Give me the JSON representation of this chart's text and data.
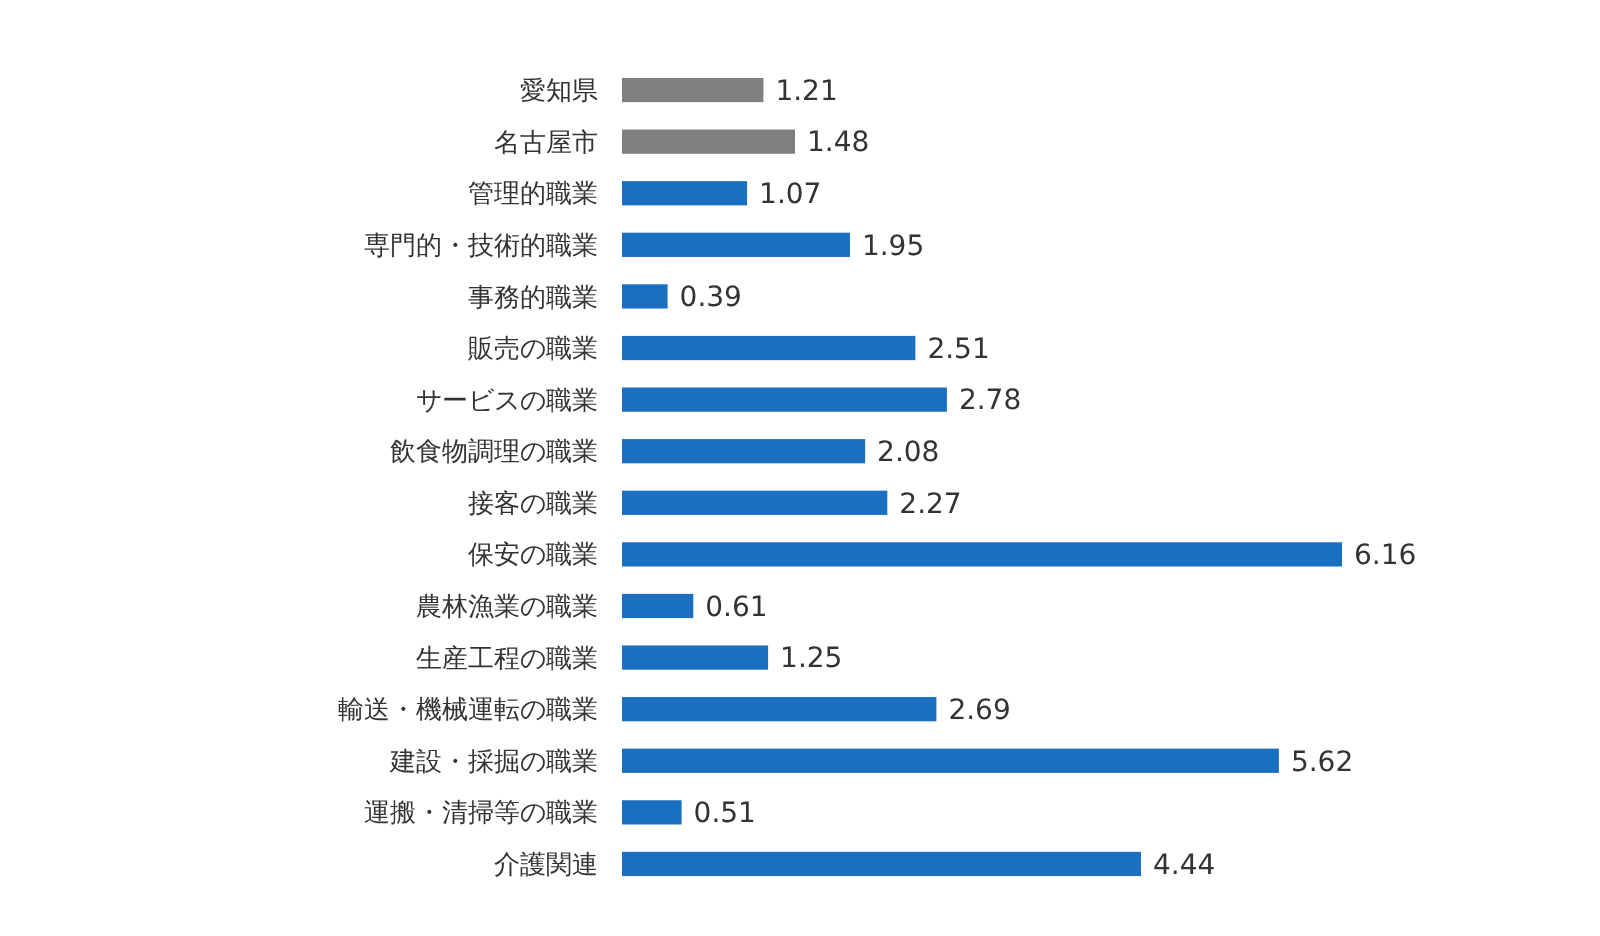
{
  "chart_data": {
    "type": "bar",
    "orientation": "horizontal",
    "categories": [
      "愛知県",
      "名古屋市",
      "管理的職業",
      "専門的・技術的職業",
      "事務的職業",
      "販売の職業",
      "サービスの職業",
      "飲食物調理の職業",
      "接客の職業",
      "保安の職業",
      "農林漁業の職業",
      "生産工程の職業",
      "輸送・機械運転の職業",
      "建設・採掘の職業",
      "運搬・清掃等の職業",
      "介護関連"
    ],
    "values": [
      1.21,
      1.48,
      1.07,
      1.95,
      0.39,
      2.51,
      2.78,
      2.08,
      2.27,
      6.16,
      0.61,
      1.25,
      2.69,
      5.62,
      0.51,
      4.44
    ],
    "colors": [
      "#7f7f7f",
      "#7f7f7f",
      "#1a6fc0",
      "#1a6fc0",
      "#1a6fc0",
      "#1a6fc0",
      "#1a6fc0",
      "#1a6fc0",
      "#1a6fc0",
      "#1a6fc0",
      "#1a6fc0",
      "#1a6fc0",
      "#1a6fc0",
      "#1a6fc0",
      "#1a6fc0",
      "#1a6fc0"
    ],
    "data_labels": true
  }
}
